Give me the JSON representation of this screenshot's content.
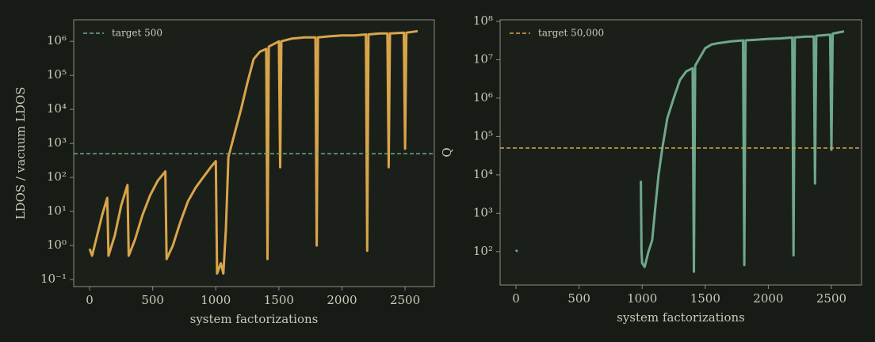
{
  "chart_data": [
    {
      "type": "line",
      "xlabel": "system factorizations",
      "ylabel": "LDOS / vacuum LDOS",
      "log_y": true,
      "xlim": [
        -126,
        2732
      ],
      "ylim": [
        0.062,
        4300000
      ],
      "xticks": [
        0,
        500,
        1000,
        1500,
        2000,
        2500
      ],
      "yticks": [
        {
          "value": 0.1,
          "label": "10⁻¹"
        },
        {
          "value": 1,
          "label": "10⁰"
        },
        {
          "value": 10,
          "label": "10¹"
        },
        {
          "value": 100,
          "label": "10²"
        },
        {
          "value": 1000,
          "label": "10³"
        },
        {
          "value": 10000,
          "label": "10⁴"
        },
        {
          "value": 100000,
          "label": "10⁵"
        },
        {
          "value": 1000000,
          "label": "10⁶"
        }
      ],
      "target": {
        "name": "target 500",
        "value": 500,
        "color": "#6fa88c"
      },
      "legend": "upper left",
      "x": [
        0,
        20,
        60,
        100,
        140,
        150,
        200,
        250,
        300,
        310,
        360,
        420,
        480,
        540,
        600,
        610,
        660,
        720,
        780,
        840,
        900,
        960,
        1000,
        1010,
        1040,
        1060,
        1080,
        1100,
        1150,
        1200,
        1250,
        1300,
        1350,
        1400,
        1410,
        1420,
        1500,
        1510,
        1520,
        1600,
        1700,
        1790,
        1800,
        1810,
        1900,
        2000,
        2100,
        2190,
        2200,
        2210,
        2300,
        2360,
        2370,
        2380,
        2490,
        2500,
        2510,
        2600
      ],
      "series": [
        {
          "color": "#d9a54a",
          "values": [
            0.8,
            0.5,
            2,
            8,
            25,
            0.5,
            2,
            15,
            60,
            0.5,
            1.5,
            8,
            30,
            80,
            150,
            0.4,
            1,
            5,
            20,
            50,
            100,
            200,
            300,
            0.15,
            0.3,
            0.15,
            3,
            400,
            2000,
            10000,
            60000,
            300000,
            500000,
            600000,
            0.4,
            700000,
            1000000,
            200,
            1000000,
            1200000,
            1300000,
            1300000,
            1,
            1300000,
            1400000,
            1500000,
            1500000,
            1600000,
            0.7,
            1600000,
            1700000,
            1700000,
            200,
            1700000,
            1800000,
            700,
            1800000,
            2000000
          ]
        }
      ]
    },
    {
      "type": "line",
      "xlabel": "system factorizations",
      "ylabel": "Q",
      "log_y": true,
      "xlim": [
        -126,
        2739
      ],
      "ylim": [
        13.5,
        110000000
      ],
      "xticks": [
        0,
        500,
        1000,
        1500,
        2000,
        2500
      ],
      "yticks": [
        {
          "value": 100,
          "label": "10²"
        },
        {
          "value": 1000,
          "label": "10³"
        },
        {
          "value": 10000,
          "label": "10⁴"
        },
        {
          "value": 100000,
          "label": "10⁵"
        },
        {
          "value": 1000000,
          "label": "10⁶"
        },
        {
          "value": 10000000,
          "label": "10⁷"
        },
        {
          "value": 100000000,
          "label": "10⁸"
        }
      ],
      "target": {
        "name": "target 50,000",
        "value": 50000,
        "color": "#d9a54a"
      },
      "legend": "upper left",
      "x": [
        0,
        10,
        500,
        990,
        995,
        1000,
        1020,
        1050,
        1080,
        1100,
        1130,
        1160,
        1200,
        1250,
        1300,
        1350,
        1400,
        1410,
        1420,
        1500,
        1550,
        1600,
        1700,
        1800,
        1810,
        1820,
        1900,
        2000,
        2100,
        2190,
        2200,
        2210,
        2300,
        2360,
        2370,
        2380,
        2490,
        2500,
        2510,
        2600
      ],
      "series": [
        {
          "color": "#6fa88c",
          "values": [
            100,
            110,
            null,
            7000,
            100,
            50,
            40,
            100,
            200,
            1000,
            10000,
            50000,
            300000,
            1000000,
            3000000,
            5000000,
            6000000,
            30,
            7000000,
            20000000,
            25000000,
            27000000,
            30000000,
            32000000,
            45,
            32000000,
            33000000,
            35000000,
            36000000,
            38000000,
            80,
            38000000,
            40000000,
            40000000,
            6000,
            42000000,
            45000000,
            45000,
            48000000,
            55000000
          ]
        }
      ]
    }
  ]
}
